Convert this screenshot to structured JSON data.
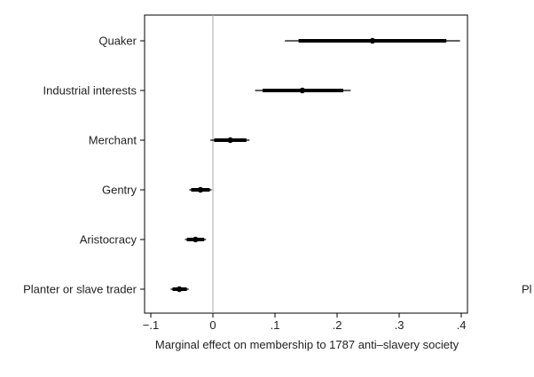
{
  "chart_data": {
    "type": "coefficient-plot",
    "xlabel": "Marginal effect on membership to 1787 anti–slavery society",
    "xlim": [
      -0.11,
      0.41
    ],
    "xticks": [
      {
        "value": -0.1,
        "label": "−.1"
      },
      {
        "value": 0,
        "label": "0"
      },
      {
        "value": 0.1,
        "label": ".1"
      },
      {
        "value": 0.2,
        "label": ".2"
      },
      {
        "value": 0.3,
        "label": ".3"
      },
      {
        "value": 0.4,
        "label": ".4"
      }
    ],
    "reference_line": 0,
    "categories": [
      "Quaker",
      "Industrial interests",
      "Merchant",
      "Gentry",
      "Aristocracy",
      "Planter or slave trader"
    ],
    "estimates": [
      {
        "label": "Quaker",
        "point": 0.257,
        "ci_outer": [
          0.116,
          0.398
        ],
        "ci_inner": [
          0.138,
          0.376
        ]
      },
      {
        "label": "Industrial interests",
        "point": 0.144,
        "ci_outer": [
          0.068,
          0.222
        ],
        "ci_inner": [
          0.08,
          0.21
        ]
      },
      {
        "label": "Merchant",
        "point": 0.028,
        "ci_outer": [
          -0.004,
          0.059
        ],
        "ci_inner": [
          0.002,
          0.054
        ]
      },
      {
        "label": "Gentry",
        "point": -0.02,
        "ci_outer": [
          -0.038,
          -0.002
        ],
        "ci_inner": [
          -0.035,
          -0.005
        ]
      },
      {
        "label": "Aristocracy",
        "point": -0.028,
        "ci_outer": [
          -0.045,
          -0.011
        ],
        "ci_inner": [
          -0.042,
          -0.014
        ]
      },
      {
        "label": "Planter or slave trader",
        "point": -0.054,
        "ci_outer": [
          -0.068,
          -0.039
        ],
        "ci_inner": [
          -0.065,
          -0.042
        ]
      }
    ],
    "colors": {
      "marks": "#000000",
      "reference": "#aaaaaa",
      "frame": "#000000"
    }
  },
  "side_text": "Pl"
}
